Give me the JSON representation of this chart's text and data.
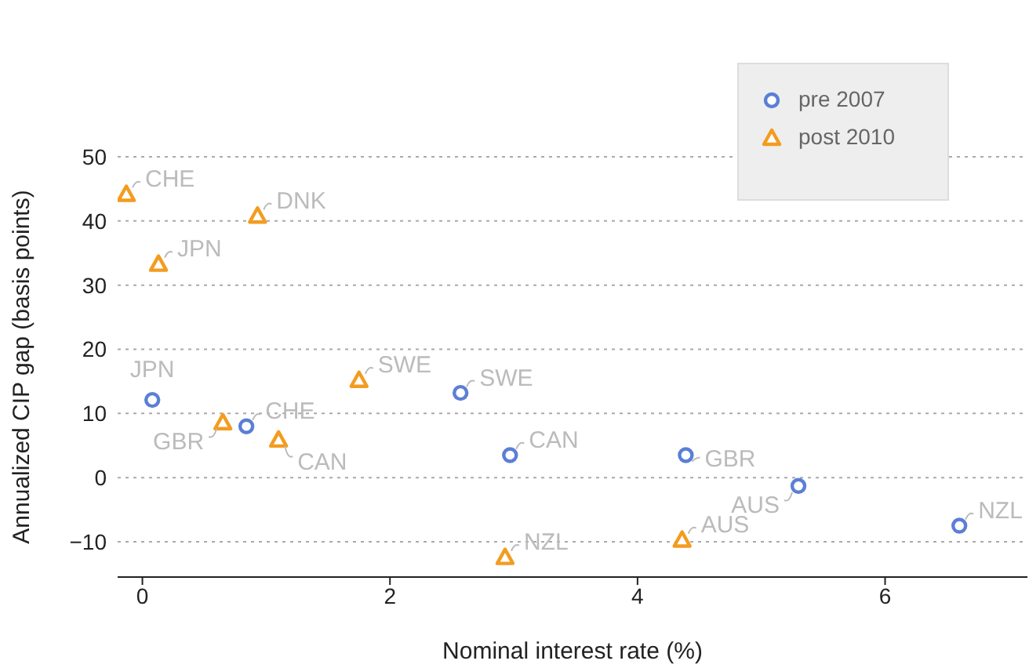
{
  "chart_data": {
    "type": "scatter",
    "xlabel": "Nominal interest rate (%)",
    "ylabel": "Annualized CIP gap (basis points)",
    "xlim": [
      -0.2,
      7.15
    ],
    "ylim": [
      -15.5,
      50
    ],
    "xticks": [
      0,
      2,
      4,
      6
    ],
    "yticks": [
      -10,
      0,
      10,
      20,
      30,
      40,
      50
    ],
    "grid": "y",
    "legend": "top right",
    "series": [
      {
        "name": "pre 2007",
        "color": "#5b7fd6",
        "marker": "circle",
        "x": [
          0.08,
          0.84,
          2.57,
          2.97,
          4.39,
          5.3,
          6.6
        ],
        "values": [
          12.1,
          8,
          13.2,
          3.5,
          3.5,
          -1.3,
          -7.5
        ]
      },
      {
        "name": "post 2010",
        "color": "#f39c1f",
        "marker": "triangle",
        "x": [
          -0.13,
          0.93,
          0.13,
          1.75,
          0.65,
          1.1,
          2.93,
          4.36
        ],
        "values": [
          44.2,
          40.8,
          33.3,
          15.2,
          8.6,
          5.9,
          -12.4,
          -9.7
        ]
      }
    ],
    "annotations": [
      {
        "text": "JPN",
        "x": 0.08,
        "y": 12.1
      },
      {
        "text": "CHE",
        "x": 0.84,
        "y": 8
      },
      {
        "text": "SWE",
        "x": 2.57,
        "y": 13.2
      },
      {
        "text": "CAN",
        "x": 2.97,
        "y": 3.5
      },
      {
        "text": "GBR",
        "x": 4.39,
        "y": 3.5
      },
      {
        "text": "AUS",
        "x": 5.3,
        "y": -1.3
      },
      {
        "text": "NZL",
        "x": 6.6,
        "y": -7.5
      },
      {
        "text": "CHE",
        "x": -0.13,
        "y": 44.2
      },
      {
        "text": "DNK",
        "x": 0.93,
        "y": 40.8
      },
      {
        "text": "JPN",
        "x": 0.13,
        "y": 33.3
      },
      {
        "text": "SWE",
        "x": 1.75,
        "y": 15.2
      },
      {
        "text": "GBR",
        "x": 0.65,
        "y": 8.6
      },
      {
        "text": "CAN",
        "x": 1.1,
        "y": 5.9
      },
      {
        "text": "NZL",
        "x": 2.93,
        "y": -12.4
      },
      {
        "text": "AUS",
        "x": 4.36,
        "y": -9.7
      }
    ]
  }
}
